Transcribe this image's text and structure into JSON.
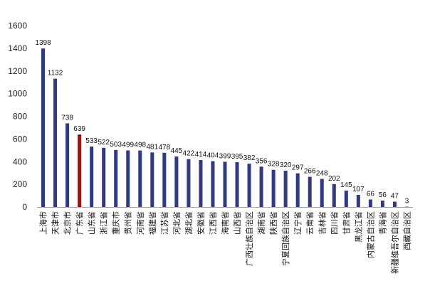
{
  "chart_data": {
    "type": "bar",
    "title": "",
    "xlabel": "",
    "ylabel": "",
    "ylim": [
      0,
      1600
    ],
    "yticks": [
      0,
      200,
      400,
      600,
      800,
      1000,
      1200,
      1400,
      1600
    ],
    "grid": false,
    "legend": "none",
    "colors": {
      "default": "#2e3a87",
      "highlight": "#c00000",
      "axis": "#a6a6a6"
    },
    "highlight_category": "广东省",
    "categories": [
      "上海市",
      "天津市",
      "北京市",
      "广东省",
      "山东省",
      "浙江省",
      "重庆市",
      "贵州省",
      "河南省",
      "福建省",
      "江苏省",
      "河北省",
      "湖北省",
      "安徽省",
      "江西省",
      "海南省",
      "山西省",
      "广西壮族自治区",
      "湖南省",
      "陕西省",
      "宁夏回族自治区",
      "辽宁省",
      "云南省",
      "吉林省",
      "四川省",
      "甘肃省",
      "黑龙江省",
      "内蒙古自治区",
      "青海省",
      "新疆维吾尔自治区",
      "西藏自治区"
    ],
    "values": [
      1398,
      1132,
      738,
      639,
      533,
      522,
      503,
      499,
      498,
      481,
      478,
      445,
      422,
      414,
      404,
      399,
      395,
      382,
      356,
      328,
      320,
      297,
      266,
      248,
      202,
      145,
      107,
      66,
      56,
      47,
      3
    ],
    "value_labels": [
      "1398",
      "1132",
      "738",
      "639",
      "533",
      "522",
      "503",
      "499",
      "498",
      "481",
      "478",
      "445",
      "422",
      "414",
      "404",
      "399",
      "395",
      "382",
      "356",
      "328",
      "320",
      "297",
      "266",
      "248",
      "202",
      "145",
      "107",
      "66",
      "56",
      "47",
      "3"
    ],
    "ytick_labels": [
      "0",
      "200",
      "400",
      "600",
      "800",
      "1000",
      "1200",
      "1400",
      "1600"
    ]
  }
}
